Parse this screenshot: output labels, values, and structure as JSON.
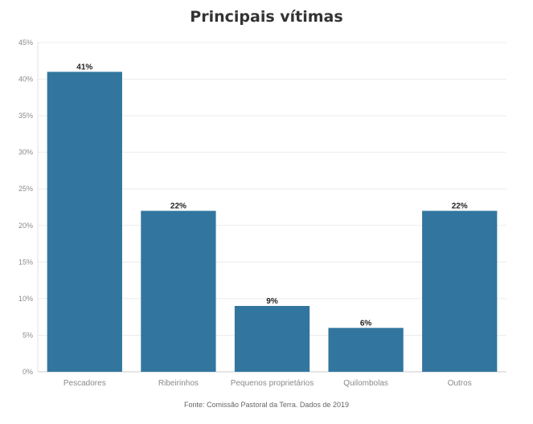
{
  "chart_data": {
    "type": "bar",
    "title": "Principais vítimas",
    "categories": [
      "Pescadores",
      "Ribeirinhos",
      "Pequenos proprietários",
      "Quilombolas",
      "Outros"
    ],
    "values": [
      41,
      22,
      9,
      6,
      22
    ],
    "data_labels": [
      "41%",
      "22%",
      "9%",
      "6%",
      "22%"
    ],
    "y_ticks": [
      "0%",
      "5%",
      "10%",
      "15%",
      "20%",
      "25%",
      "30%",
      "35%",
      "40%",
      "45%"
    ],
    "ylim": [
      0,
      45
    ],
    "xlabel": "",
    "ylabel": "",
    "grid": true,
    "bar_color": "#32769f",
    "source": "Fonte: Comissão Pastoral da Terra. Dados de 2019"
  }
}
